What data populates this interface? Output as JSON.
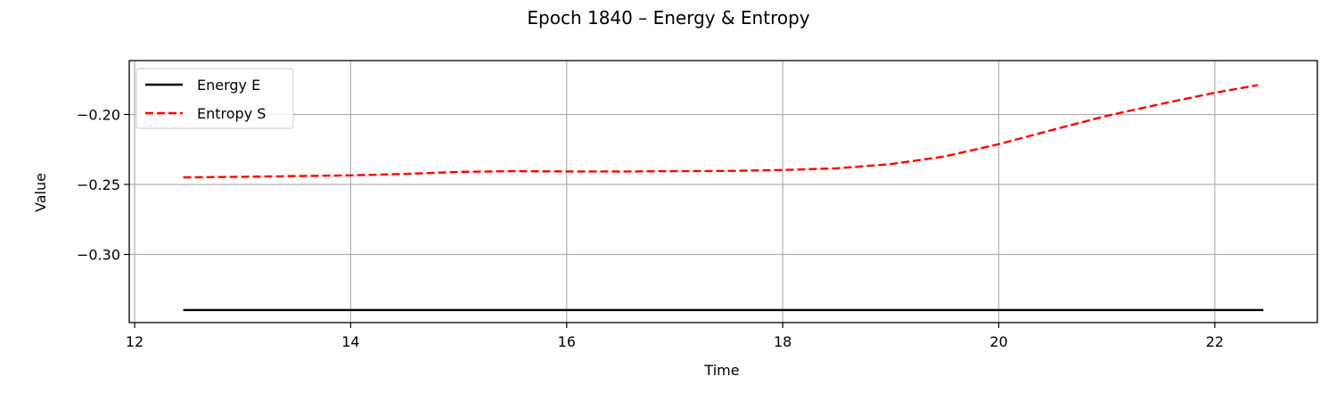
{
  "chart_data": {
    "type": "line",
    "title": "Epoch 1840 – Energy & Entropy",
    "xlabel": "Time",
    "ylabel": "Value",
    "xlim": [
      11.95,
      22.95
    ],
    "ylim": [
      -0.3487,
      -0.1615
    ],
    "xticks": [
      12,
      14,
      16,
      18,
      20,
      22
    ],
    "xtick_labels": [
      "12",
      "14",
      "16",
      "18",
      "20",
      "22"
    ],
    "yticks": [
      -0.2,
      -0.25,
      -0.3
    ],
    "ytick_labels": [
      "−0.20",
      "−0.25",
      "−0.30"
    ],
    "grid": true,
    "legend_position": "upper-left",
    "series": [
      {
        "name": "Energy E",
        "color": "#000000",
        "style": "solid",
        "x": [
          12.45,
          22.45
        ],
        "y": [
          -0.3397,
          -0.3397
        ]
      },
      {
        "name": "Entropy S",
        "color": "#ff0000",
        "style": "dashed",
        "x": [
          12.45,
          13.0,
          13.5,
          14.0,
          14.5,
          15.0,
          15.5,
          16.0,
          16.5,
          17.0,
          17.5,
          18.0,
          18.5,
          19.0,
          19.5,
          20.0,
          20.5,
          21.0,
          21.5,
          22.0,
          22.4
        ],
        "y": [
          -0.245,
          -0.2445,
          -0.244,
          -0.2435,
          -0.2425,
          -0.241,
          -0.2405,
          -0.2407,
          -0.2408,
          -0.2405,
          -0.2403,
          -0.2397,
          -0.2385,
          -0.2355,
          -0.23,
          -0.2212,
          -0.211,
          -0.201,
          -0.1925,
          -0.1845,
          -0.179
        ]
      }
    ]
  }
}
